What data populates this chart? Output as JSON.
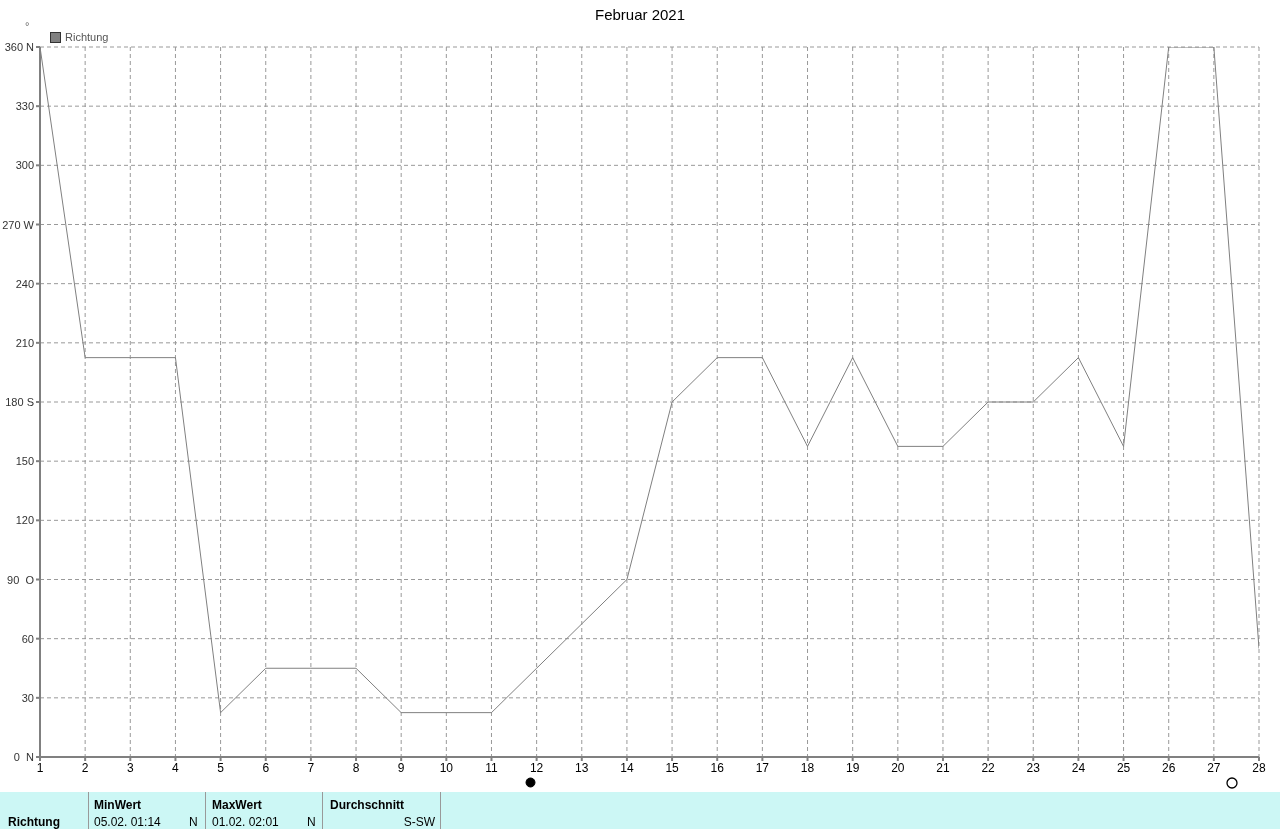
{
  "chart_data": {
    "type": "line",
    "title": "Februar 2021",
    "ylabel": "°",
    "x": [
      1,
      2,
      3,
      4,
      5,
      6,
      7,
      8,
      9,
      10,
      11,
      12,
      13,
      14,
      15,
      16,
      17,
      18,
      19,
      20,
      21,
      22,
      23,
      24,
      25,
      26,
      27,
      28
    ],
    "series": [
      {
        "name": "Richtung",
        "color": "#808080",
        "values": [
          360,
          202.5,
          202.5,
          202.5,
          22.5,
          45,
          45,
          45,
          22.5,
          22.5,
          22.5,
          45,
          67.5,
          90,
          180,
          202.5,
          202.5,
          157.5,
          202.5,
          157.5,
          157.5,
          180,
          180,
          202.5,
          157.5,
          360,
          360,
          55
        ]
      }
    ],
    "xlim": [
      1,
      28
    ],
    "xticks": [
      1,
      2,
      3,
      4,
      5,
      6,
      7,
      8,
      9,
      10,
      11,
      12,
      13,
      14,
      15,
      16,
      17,
      18,
      19,
      20,
      21,
      22,
      23,
      24,
      25,
      26,
      27,
      28
    ],
    "ylim": [
      0,
      360
    ],
    "yticks": [
      {
        "value": 0,
        "label": "0  N"
      },
      30,
      60,
      {
        "value": 90,
        "label": "90  O"
      },
      120,
      150,
      {
        "value": 180,
        "label": "180 S"
      },
      210,
      240,
      {
        "value": 270,
        "label": "270 W"
      },
      300,
      330,
      {
        "value": 360,
        "label": "360 N"
      }
    ],
    "grid": true,
    "legend": "top left",
    "marker": "none",
    "line_style": "solid",
    "annotations": [
      "Richtung",
      "MinWert",
      "05.02.  01:14",
      "N",
      "MaxWert",
      "01.02.  02:01",
      "N",
      "Durchschnitt",
      "S-SW"
    ]
  }
}
